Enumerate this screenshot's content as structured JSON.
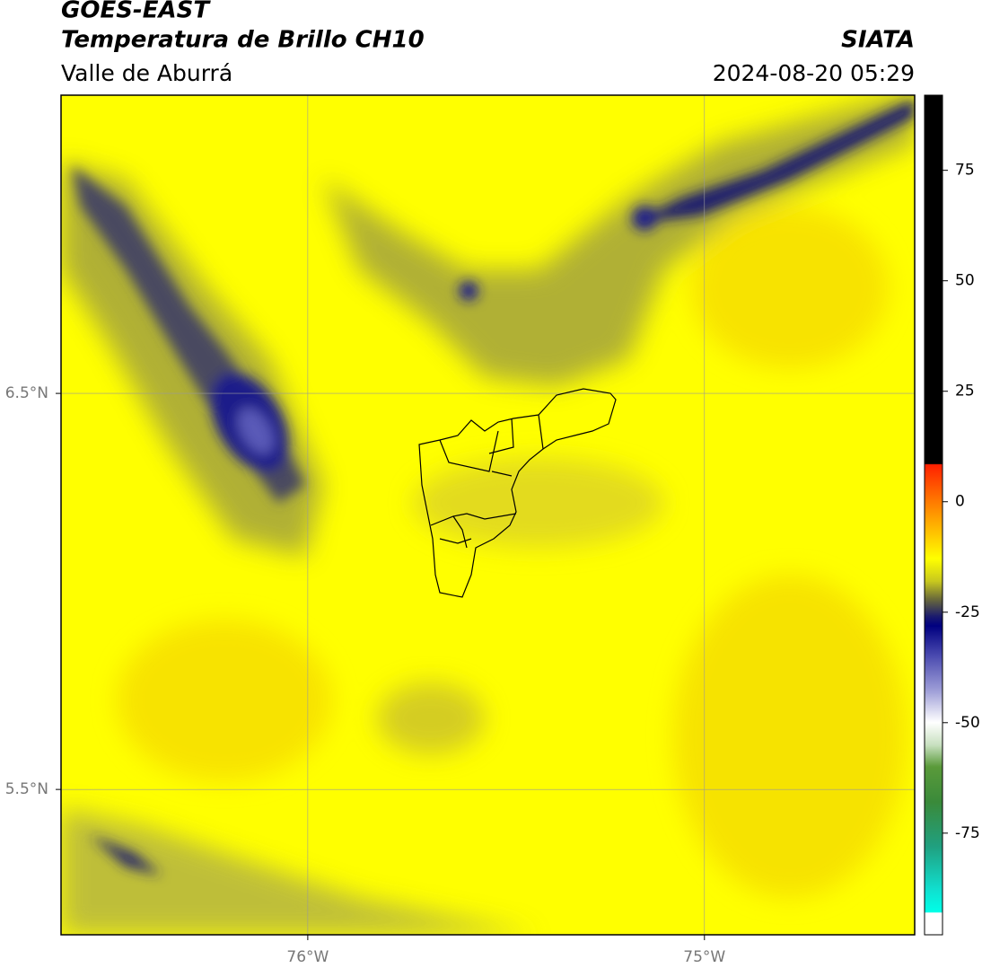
{
  "header": {
    "title": "GOES-EAST",
    "subtitle": "Temperatura de Brillo CH10",
    "region": "Valle de Aburrá",
    "source": "SIATA",
    "datetime": "2024-08-20 05:29"
  },
  "map": {
    "xlim": [
      -76.622,
      -74.47
    ],
    "ylim": [
      5.133,
      7.253
    ],
    "lat_ticks": [
      {
        "value": 6.5,
        "label": "6.5°N"
      },
      {
        "value": 5.5,
        "label": "5.5°N"
      }
    ],
    "lon_ticks": [
      {
        "value": -76,
        "label": "76°W"
      },
      {
        "value": -75,
        "label": "75°W"
      }
    ]
  },
  "colorbar": {
    "range": [
      -98,
      92
    ],
    "ticks": [
      75,
      50,
      25,
      0,
      -25,
      -50,
      -75
    ]
  }
}
